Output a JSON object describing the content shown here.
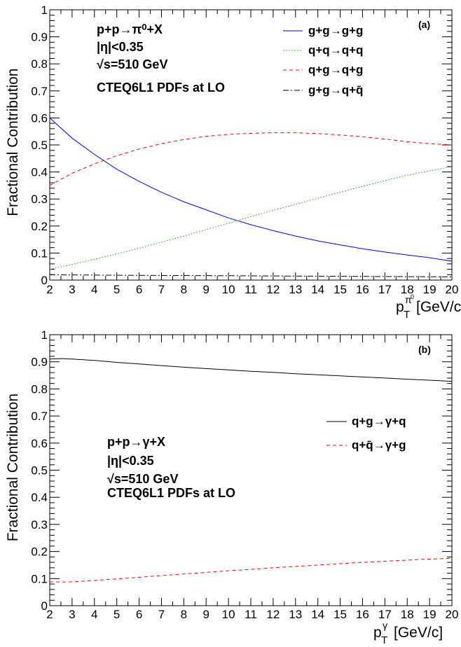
{
  "chart_data": [
    {
      "type": "line",
      "panel_label": "(a)",
      "ylabel": "Fractional Contribution",
      "xlabel_main": "p",
      "xlabel_sub": "T",
      "xlabel_sup_base": "π",
      "xlabel_sup_sup": "0",
      "xlabel_unit": "[GeV/c]",
      "xlim": [
        2,
        20
      ],
      "ylim": [
        0,
        1
      ],
      "x_ticks": [
        "2",
        "3",
        "4",
        "5",
        "6",
        "7",
        "8",
        "9",
        "10",
        "11",
        "12",
        "13",
        "14",
        "15",
        "16",
        "17",
        "18",
        "19",
        "20"
      ],
      "y_ticks": [
        "0",
        "0.1",
        "0.2",
        "0.3",
        "0.4",
        "0.5",
        "0.6",
        "0.7",
        "0.8",
        "0.9",
        "1"
      ],
      "annotations": [
        "p+p→π⁰+X",
        "|η|<0.35",
        "√s=510 GeV",
        "CTEQ6L1 PDFs at LO"
      ],
      "legend_position": "top-right",
      "grid": false,
      "series": [
        {
          "name": "g+g→g+g",
          "color": "#0000ff",
          "dash": "solid",
          "x": [
            2,
            3,
            4,
            5,
            6,
            7,
            8,
            9,
            10,
            11,
            12,
            13,
            14,
            15,
            16,
            17,
            18,
            19,
            20
          ],
          "y": [
            0.6,
            0.525,
            0.465,
            0.41,
            0.365,
            0.325,
            0.29,
            0.26,
            0.23,
            0.205,
            0.183,
            0.163,
            0.145,
            0.13,
            0.116,
            0.104,
            0.093,
            0.083,
            0.07
          ]
        },
        {
          "name": "q+q→q+q",
          "color": "#00aa00",
          "dash": "dotted",
          "x": [
            2,
            3,
            4,
            5,
            6,
            7,
            8,
            9,
            10,
            11,
            12,
            13,
            14,
            15,
            16,
            17,
            18,
            19,
            20
          ],
          "y": [
            0.04,
            0.058,
            0.077,
            0.097,
            0.118,
            0.14,
            0.163,
            0.187,
            0.21,
            0.235,
            0.258,
            0.28,
            0.303,
            0.325,
            0.347,
            0.368,
            0.388,
            0.404,
            0.42
          ]
        },
        {
          "name": "q+g→q+g",
          "color": "#ff0000",
          "dash": "dashed",
          "x": [
            2,
            3,
            4,
            5,
            6,
            7,
            8,
            9,
            10,
            11,
            12,
            13,
            14,
            15,
            16,
            17,
            18,
            19,
            20
          ],
          "y": [
            0.35,
            0.395,
            0.43,
            0.46,
            0.485,
            0.505,
            0.52,
            0.532,
            0.539,
            0.543,
            0.545,
            0.545,
            0.542,
            0.537,
            0.53,
            0.522,
            0.512,
            0.505,
            0.5
          ]
        },
        {
          "name": "g+g→q+q̄",
          "color": "#000000",
          "dash": "dashdot",
          "x": [
            2,
            5,
            10,
            15,
            20
          ],
          "y": [
            0.02,
            0.018,
            0.016,
            0.014,
            0.012
          ]
        }
      ]
    },
    {
      "type": "line",
      "panel_label": "(b)",
      "ylabel": "Fractional Contribution",
      "xlabel_main": "p",
      "xlabel_sub": "T",
      "xlabel_sup_base": "γ",
      "xlabel_sup_sup": "",
      "xlabel_unit": "[GeV/c]",
      "xlim": [
        2,
        20
      ],
      "ylim": [
        0,
        1
      ],
      "x_ticks": [
        "2",
        "3",
        "4",
        "5",
        "6",
        "7",
        "8",
        "9",
        "10",
        "11",
        "12",
        "13",
        "14",
        "15",
        "16",
        "17",
        "18",
        "19",
        "20"
      ],
      "y_ticks": [
        "0",
        "0.1",
        "0.2",
        "0.3",
        "0.4",
        "0.5",
        "0.6",
        "0.7",
        "0.8",
        "0.9",
        "1"
      ],
      "annotations": [
        "p+p→γ+X",
        "|η|<0.35",
        "√s=510 GeV",
        "CTEQ6L1 PDFs at LO"
      ],
      "legend_position": "middle-right",
      "grid": false,
      "series": [
        {
          "name": "q+g→γ+q",
          "color": "#000000",
          "dash": "solid",
          "x": [
            2,
            2.5,
            3,
            4,
            5,
            6,
            7,
            8,
            9,
            10,
            11,
            12,
            13,
            14,
            15,
            16,
            17,
            18,
            19,
            20
          ],
          "y": [
            0.91,
            0.912,
            0.91,
            0.905,
            0.898,
            0.892,
            0.886,
            0.88,
            0.875,
            0.87,
            0.865,
            0.861,
            0.856,
            0.852,
            0.848,
            0.844,
            0.84,
            0.836,
            0.832,
            0.828
          ]
        },
        {
          "name": "q+q̄→γ+g",
          "color": "#ff0000",
          "dash": "dashed",
          "x": [
            2,
            2.5,
            3,
            4,
            5,
            6,
            7,
            8,
            9,
            10,
            11,
            12,
            13,
            14,
            15,
            16,
            17,
            18,
            19,
            20
          ],
          "y": [
            0.088,
            0.087,
            0.088,
            0.093,
            0.099,
            0.105,
            0.111,
            0.117,
            0.123,
            0.129,
            0.134,
            0.14,
            0.145,
            0.15,
            0.155,
            0.16,
            0.164,
            0.168,
            0.172,
            0.175
          ]
        }
      ]
    }
  ]
}
